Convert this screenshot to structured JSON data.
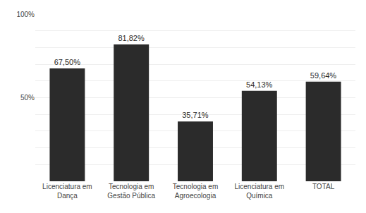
{
  "chart_data": {
    "type": "bar",
    "categories": [
      "Licenciatura em\nDança",
      "Tecnologia em\nGestão Pública",
      "Tecnologia em\nAgroecologia",
      "Licenciatura em\nQuímica",
      "TOTAL"
    ],
    "values": [
      67.5,
      81.82,
      35.71,
      54.13,
      59.64
    ],
    "value_labels": [
      "67,50%",
      "81,82%",
      "35,71%",
      "54,13%",
      "59,64%"
    ],
    "data_labels": true,
    "color": "#2b2b2b",
    "ylim": [
      0,
      100
    ],
    "yticks": [
      {
        "value": 0,
        "label": null
      },
      {
        "value": 10,
        "label": null
      },
      {
        "value": 20,
        "label": null
      },
      {
        "value": 30,
        "label": null
      },
      {
        "value": 40,
        "label": null
      },
      {
        "value": 50,
        "label": "50%"
      },
      {
        "value": 60,
        "label": null
      },
      {
        "value": 70,
        "label": null
      },
      {
        "value": 80,
        "label": null
      },
      {
        "value": 90,
        "label": null
      },
      {
        "value": 100,
        "label": "100%"
      }
    ],
    "grid": true
  }
}
